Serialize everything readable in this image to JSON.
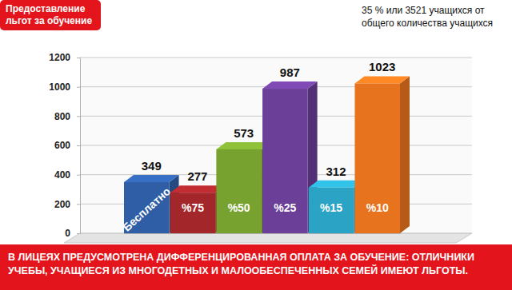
{
  "chart_data": {
    "type": "bar",
    "title": "Предоставление льгот за обучение",
    "categories": [
      "Бесплатно",
      "%75",
      "%50",
      "%25",
      "%15",
      "%10"
    ],
    "values": [
      349,
      277,
      573,
      987,
      312,
      1023
    ],
    "colors": [
      "#2f5ea6",
      "#a3262a",
      "#78a22f",
      "#6b3e98",
      "#2aa3c4",
      "#e8731e"
    ],
    "ylim": [
      0,
      1200
    ],
    "yticks": [
      0,
      200,
      400,
      600,
      800,
      1000,
      1200
    ],
    "grid": true,
    "data_labels": true,
    "annotations": [
      "35 % или 3521 учащихся от общего количества учащихся",
      "В ЛИЦЕЯХ ПРЕДУСМОТРЕНА ДИФФЕРЕНЦИРОВАННАЯ ОПЛАТА ЗА ОБУЧЕНИЕ: ОТЛИЧНИКИ УЧЕБЫ, УЧАЩИЕСЯ ИЗ МНОГОДЕТНЫХ И МАЛООБЕСПЕЧЕННЫХ СЕМЕЙ ИМЕЮТ ЛЬГОТЫ."
    ]
  }
}
